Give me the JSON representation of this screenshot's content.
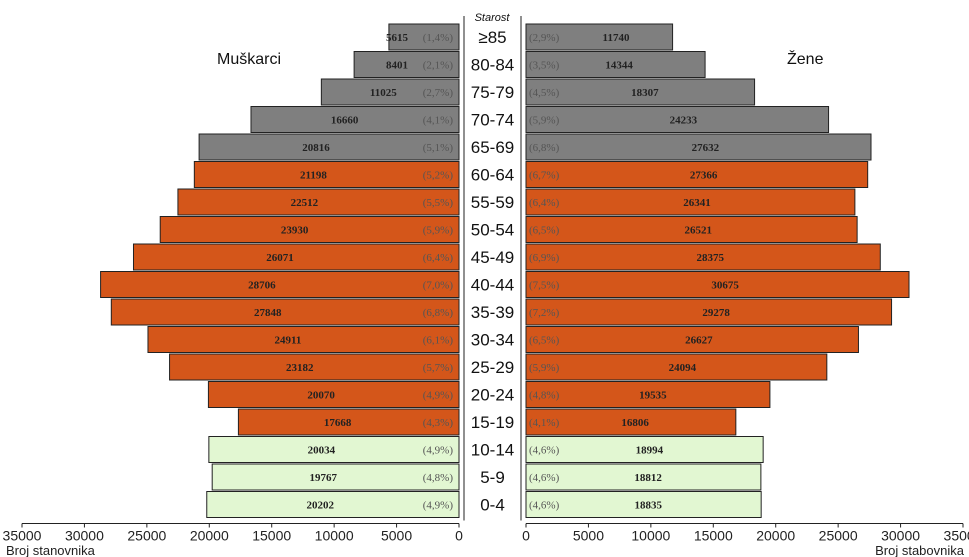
{
  "chart_data": {
    "type": "bar",
    "orientation": "horizontal-population-pyramid",
    "age_axis_title": "Starost",
    "left_label": "Muškarci",
    "right_label": "Žene",
    "left_axis_label": "Broj stanovnika",
    "right_axis_label": "Broj stabovnika",
    "x_ticks": [
      "35000",
      "30000",
      "25000",
      "20000",
      "15000",
      "10000",
      "5000",
      "0"
    ],
    "xlim": [
      0,
      35000
    ],
    "colors": {
      "old": "#7f7f7f",
      "working": "#d4561a",
      "young": "#e2f7d2"
    },
    "groups": [
      {
        "age": "≥85",
        "male": 5615,
        "male_pct": "(1,4%)",
        "female": 11740,
        "female_pct": "(2,9%)",
        "color": "old"
      },
      {
        "age": "80-84",
        "male": 8401,
        "male_pct": "(2,1%)",
        "female": 14344,
        "female_pct": "(3,5%)",
        "color": "old"
      },
      {
        "age": "75-79",
        "male": 11025,
        "male_pct": "(2,7%)",
        "female": 18307,
        "female_pct": "(4,5%)",
        "color": "old"
      },
      {
        "age": "70-74",
        "male": 16660,
        "male_pct": "(4,1%)",
        "female": 24233,
        "female_pct": "(5,9%)",
        "color": "old"
      },
      {
        "age": "65-69",
        "male": 20816,
        "male_pct": "(5,1%)",
        "female": 27632,
        "female_pct": "(6,8%)",
        "color": "old"
      },
      {
        "age": "60-64",
        "male": 21198,
        "male_pct": "(5,2%)",
        "female": 27366,
        "female_pct": "(6,7%)",
        "color": "working"
      },
      {
        "age": "55-59",
        "male": 22512,
        "male_pct": "(5,5%)",
        "female": 26341,
        "female_pct": "(6,4%)",
        "color": "working"
      },
      {
        "age": "50-54",
        "male": 23930,
        "male_pct": "(5,9%)",
        "female": 26521,
        "female_pct": "(6,5%)",
        "color": "working"
      },
      {
        "age": "45-49",
        "male": 26071,
        "male_pct": "(6,4%)",
        "female": 28375,
        "female_pct": "(6,9%)",
        "color": "working"
      },
      {
        "age": "40-44",
        "male": 28706,
        "male_pct": "(7,0%)",
        "female": 30675,
        "female_pct": "(7,5%)",
        "color": "working"
      },
      {
        "age": "35-39",
        "male": 27848,
        "male_pct": "(6,8%)",
        "female": 29278,
        "female_pct": "(7,2%)",
        "color": "working"
      },
      {
        "age": "30-34",
        "male": 24911,
        "male_pct": "(6,1%)",
        "female": 26627,
        "female_pct": "(6,5%)",
        "color": "working"
      },
      {
        "age": "25-29",
        "male": 23182,
        "male_pct": "(5,7%)",
        "female": 24094,
        "female_pct": "(5,9%)",
        "color": "working"
      },
      {
        "age": "20-24",
        "male": 20070,
        "male_pct": "(4,9%)",
        "female": 19535,
        "female_pct": "(4,8%)",
        "color": "working"
      },
      {
        "age": "15-19",
        "male": 17668,
        "male_pct": "(4,3%)",
        "female": 16806,
        "female_pct": "(4,1%)",
        "color": "working"
      },
      {
        "age": "10-14",
        "male": 20034,
        "male_pct": "(4,9%)",
        "female": 18994,
        "female_pct": "(4,6%)",
        "color": "young"
      },
      {
        "age": "5-9",
        "male": 19767,
        "male_pct": "(4,8%)",
        "female": 18812,
        "female_pct": "(4,6%)",
        "color": "young"
      },
      {
        "age": "0-4",
        "male": 20202,
        "male_pct": "(4,9%)",
        "female": 18835,
        "female_pct": "(4,6%)",
        "color": "young"
      }
    ]
  }
}
